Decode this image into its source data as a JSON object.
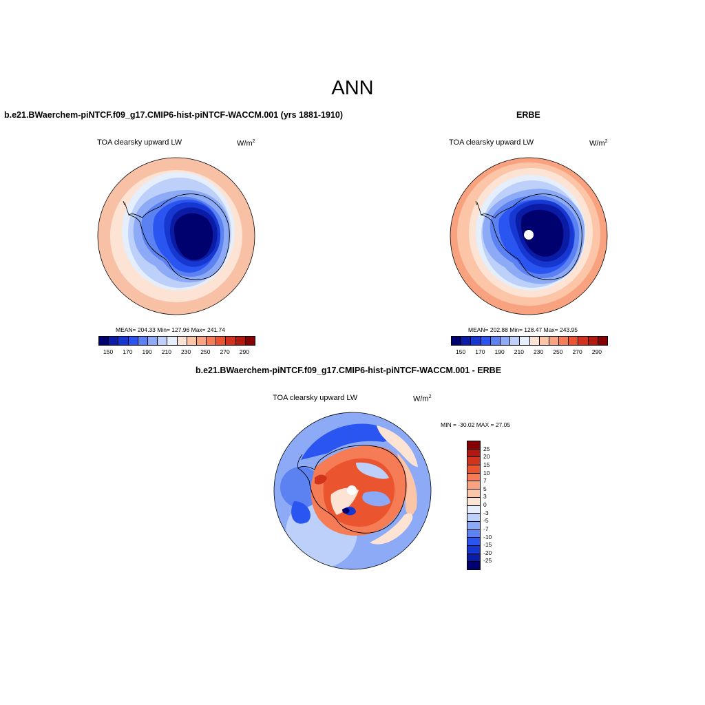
{
  "main_title": "ANN",
  "left_panel": {
    "title": "b.e21.BWaerchem-piNTCF.f09_g17.CMIP6-hist-piNTCF-WACCM.001 (yrs 1881-1910)",
    "variable": "TOA clearsky upward LW",
    "units_base": "W/m",
    "units_exp": "2",
    "stats": "MEAN= 204.33  Min= 127.96  Max= 241.74"
  },
  "right_panel": {
    "title": "ERBE",
    "variable": "TOA clearsky upward LW",
    "units_base": "W/m",
    "units_exp": "2",
    "stats": "MEAN= 202.88  Min= 128.47  Max= 243.95"
  },
  "diff_panel": {
    "title": "b.e21.BWaerchem-piNTCF.f09_g17.CMIP6-hist-piNTCF-WACCM.001 - ERBE",
    "variable": "TOA clearsky upward LW",
    "units_base": "W/m",
    "units_exp": "2",
    "minmax": "MIN = -30.02 MAX =  27.05"
  },
  "colors": {
    "abs_scale": [
      "#00006e",
      "#0a1ba6",
      "#1638d1",
      "#2b55f0",
      "#5c82f2",
      "#8caaf5",
      "#bcd0fa",
      "#e4eefc",
      "#fde3d3",
      "#fcc5a8",
      "#f9a27f",
      "#f57c55",
      "#ea5530",
      "#d3331b",
      "#b3180e",
      "#850000"
    ],
    "diff_scale": [
      "#850000",
      "#b3180e",
      "#d3331b",
      "#ea5530",
      "#f57c55",
      "#f9a27f",
      "#fcc5a8",
      "#fde3d3",
      "#e4eefc",
      "#bcd0fa",
      "#8caaf5",
      "#5c82f2",
      "#2b55f0",
      "#1638d1",
      "#0a1ba6",
      "#00006e"
    ]
  },
  "abs_ticks": [
    "150",
    "170",
    "190",
    "210",
    "230",
    "250",
    "270",
    "290"
  ],
  "diff_ticks": [
    "25",
    "20",
    "15",
    "10",
    "7",
    "5",
    "3",
    "0",
    "-3",
    "-5",
    "-7",
    "-10",
    "-15",
    "-20",
    "-25"
  ]
}
